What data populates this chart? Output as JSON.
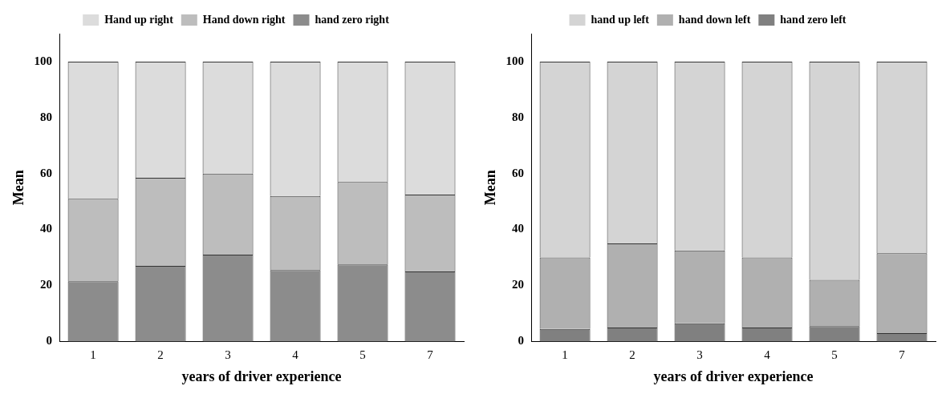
{
  "chart_data": [
    {
      "type": "bar",
      "stacked": true,
      "xlabel": "years of driver experience",
      "ylabel": "Mean",
      "categories": [
        "1",
        "2",
        "3",
        "4",
        "5",
        "7"
      ],
      "ylim": [
        0,
        110
      ],
      "yticks": [
        0,
        20,
        40,
        60,
        80,
        100
      ],
      "grid": false,
      "legend": "top",
      "series": [
        {
          "name": "hand zero right",
          "color": "#8c8c8c",
          "values": [
            21.5,
            27,
            31,
            25.5,
            27.5,
            25
          ]
        },
        {
          "name": "Hand down right",
          "color": "#bdbdbd",
          "values": [
            29.5,
            31.5,
            29,
            26.5,
            29.5,
            27.5
          ]
        },
        {
          "name": "Hand up right",
          "color": "#dcdcdc",
          "values": [
            49,
            41.5,
            40,
            48,
            43,
            47.5
          ]
        }
      ]
    },
    {
      "type": "bar",
      "stacked": true,
      "xlabel": "years of driver experience",
      "ylabel": "Mean",
      "categories": [
        "1",
        "2",
        "3",
        "4",
        "5",
        "7"
      ],
      "ylim": [
        0,
        110
      ],
      "yticks": [
        0,
        20,
        40,
        60,
        80,
        100
      ],
      "grid": false,
      "legend": "top",
      "series": [
        {
          "name": "hand zero left",
          "color": "#808080",
          "values": [
            4.5,
            5,
            6.5,
            5,
            5.5,
            3
          ]
        },
        {
          "name": "hand down left",
          "color": "#b0b0b0",
          "values": [
            25.5,
            30,
            26,
            25,
            16.5,
            28.5
          ]
        },
        {
          "name": "hand up left",
          "color": "#d4d4d4",
          "values": [
            70,
            65,
            67.5,
            70,
            78,
            68.5
          ]
        }
      ]
    }
  ]
}
